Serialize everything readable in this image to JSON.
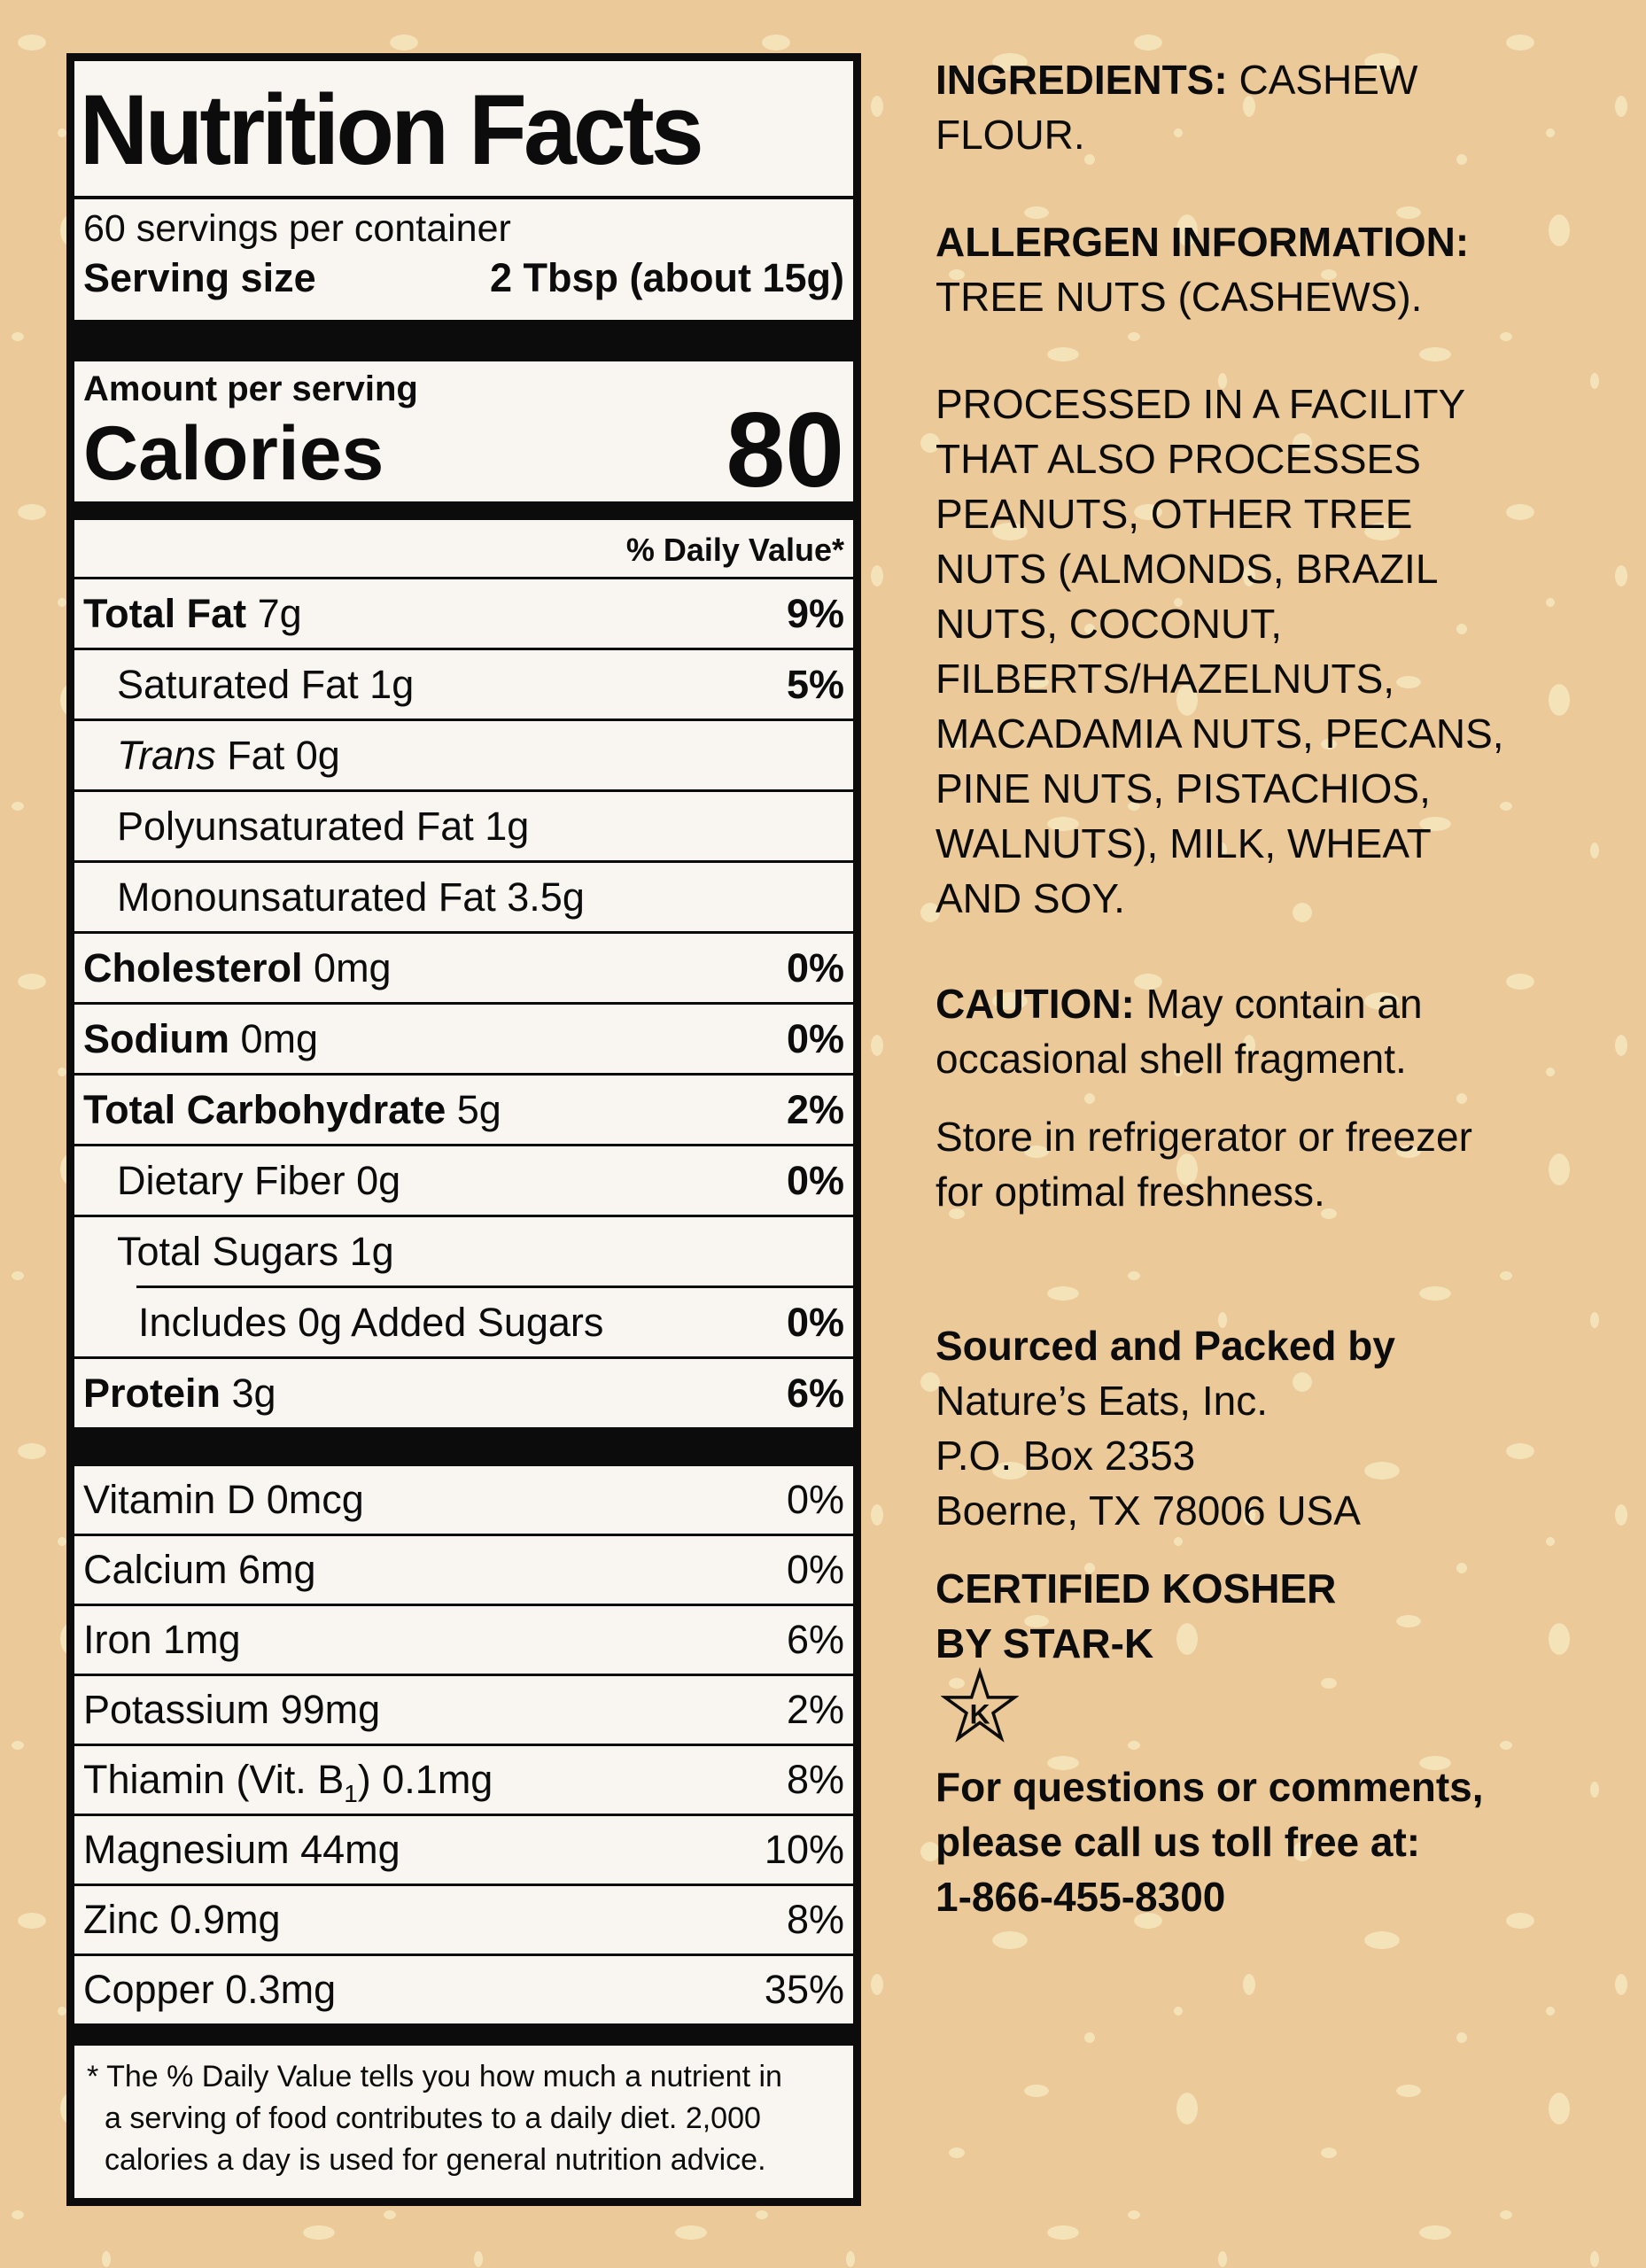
{
  "colors": {
    "background": "#ebc998",
    "panel": "#f9f5f1",
    "ink": "#0c0c0c",
    "speckle": "#f4e2b8"
  },
  "label": {
    "title": "Nutrition Facts",
    "servings": "60 servings per container",
    "serving_size_label": "Serving size",
    "serving_size_value": "2 Tbsp (about 15g)",
    "amount_per_serving": "Amount per serving",
    "calories_label": "Calories",
    "calories_value": "80",
    "dv_header": "% Daily Value*",
    "rows": [
      {
        "segs": [
          {
            "t": "Total Fat",
            "b": true
          },
          {
            "t": " 7g"
          }
        ],
        "dv": "9%",
        "dvb": true,
        "ind": 0
      },
      {
        "segs": [
          {
            "t": "Saturated Fat 1g"
          }
        ],
        "dv": "5%",
        "dvb": true,
        "ind": 1
      },
      {
        "segs": [
          {
            "t": "Trans",
            "i": true
          },
          {
            "t": " Fat 0g"
          }
        ],
        "dv": "",
        "ind": 1
      },
      {
        "segs": [
          {
            "t": "Polyunsaturated Fat 1g"
          }
        ],
        "dv": "",
        "ind": 1
      },
      {
        "segs": [
          {
            "t": "Monounsaturated Fat 3.5g"
          }
        ],
        "dv": "",
        "ind": 1
      },
      {
        "segs": [
          {
            "t": "Cholesterol",
            "b": true
          },
          {
            "t": " 0mg"
          }
        ],
        "dv": "0%",
        "dvb": true,
        "ind": 0
      },
      {
        "segs": [
          {
            "t": "Sodium",
            "b": true
          },
          {
            "t": " 0mg"
          }
        ],
        "dv": "0%",
        "dvb": true,
        "ind": 0
      },
      {
        "segs": [
          {
            "t": "Total Carbohydrate",
            "b": true
          },
          {
            "t": " 5g"
          }
        ],
        "dv": "2%",
        "dvb": true,
        "ind": 0
      },
      {
        "segs": [
          {
            "t": "Dietary Fiber 0g"
          }
        ],
        "dv": "0%",
        "dvb": true,
        "ind": 1
      },
      {
        "segs": [
          {
            "t": "Total Sugars 1g"
          }
        ],
        "dv": "",
        "ind": 1,
        "no_bb": true
      },
      {
        "segs": [
          {
            "t": "Includes 0g Added Sugars"
          }
        ],
        "dv": "0%",
        "dvb": true,
        "ind": 2,
        "rule_top": "indent"
      },
      {
        "segs": [
          {
            "t": "Protein",
            "b": true
          },
          {
            "t": " 3g"
          }
        ],
        "dv": "6%",
        "dvb": true,
        "ind": 0,
        "no_bb": true
      }
    ],
    "vitamins": [
      {
        "segs": [
          {
            "t": "Vitamin D 0mcg"
          }
        ],
        "dv": "0%"
      },
      {
        "segs": [
          {
            "t": "Calcium 6mg"
          }
        ],
        "dv": "0%"
      },
      {
        "segs": [
          {
            "t": "Iron 1mg"
          }
        ],
        "dv": "6%"
      },
      {
        "segs": [
          {
            "t": "Potassium 99mg"
          }
        ],
        "dv": "2%"
      },
      {
        "segs": [
          {
            "t": "Thiamin (Vit. B"
          },
          {
            "t": "1",
            "sub": true
          },
          {
            "t": ") 0.1mg"
          }
        ],
        "dv": "8%"
      },
      {
        "segs": [
          {
            "t": "Magnesium 44mg"
          }
        ],
        "dv": "10%"
      },
      {
        "segs": [
          {
            "t": "Zinc 0.9mg"
          }
        ],
        "dv": "8%"
      },
      {
        "segs": [
          {
            "t": "Copper 0.3mg"
          }
        ],
        "dv": "35%",
        "no_bb": true
      }
    ],
    "footnote_lines": [
      "* The % Daily Value tells you how much a nutrient in",
      "a serving of food contributes to a daily diet. 2,000",
      "calories a day is used for general nutrition advice."
    ]
  },
  "info": {
    "sections": [
      {
        "name": "ingredients",
        "lines": [
          [
            {
              "t": "INGREDIENTS:",
              "b": true
            },
            {
              "t": " CASHEW"
            }
          ],
          [
            {
              "t": "FLOUR."
            }
          ]
        ]
      },
      {
        "name": "allergen",
        "lines": [
          [
            {
              "t": "ALLERGEN INFORMATION:",
              "b": true
            }
          ],
          [
            {
              "t": "TREE NUTS (CASHEWS)."
            }
          ]
        ]
      },
      {
        "name": "facility",
        "lines": [
          [
            {
              "t": "PROCESSED IN A FACILITY"
            }
          ],
          [
            {
              "t": "THAT ALSO PROCESSES"
            }
          ],
          [
            {
              "t": "PEANUTS, OTHER TREE"
            }
          ],
          [
            {
              "t": "NUTS (ALMONDS, BRAZIL"
            }
          ],
          [
            {
              "t": "NUTS, COCONUT,"
            }
          ],
          [
            {
              "t": "FILBERTS/HAZELNUTS,"
            }
          ],
          [
            {
              "t": "MACADAMIA NUTS, PECANS,"
            }
          ],
          [
            {
              "t": "PINE NUTS, PISTACHIOS,"
            }
          ],
          [
            {
              "t": "WALNUTS), MILK, WHEAT"
            }
          ],
          [
            {
              "t": "AND SOY."
            }
          ]
        ]
      },
      {
        "name": "caution",
        "lines": [
          [
            {
              "t": "CAUTION:",
              "b": true
            },
            {
              "t": " May contain an"
            }
          ],
          [
            {
              "t": "occasional shell fragment."
            }
          ]
        ]
      },
      {
        "name": "storage",
        "lines": [
          [
            {
              "t": "Store in refrigerator or freezer"
            }
          ],
          [
            {
              "t": "for optimal freshness."
            }
          ]
        ]
      },
      {
        "name": "sourced",
        "lines": [
          [
            {
              "t": "Sourced and Packed by",
              "b": true
            }
          ],
          [
            {
              "t": "Nature’s Eats, Inc."
            }
          ],
          [
            {
              "t": "P.O. Box 2353"
            }
          ],
          [
            {
              "t": "Boerne, TX 78006 USA"
            }
          ]
        ]
      },
      {
        "name": "kosher",
        "lines": [
          [
            {
              "t": "CERTIFIED KOSHER",
              "b": true
            }
          ],
          [
            {
              "t": "BY STAR-K",
              "b": true
            }
          ]
        ]
      },
      {
        "name": "contact",
        "lines": [
          [
            {
              "t": "For questions or comments,",
              "b": true
            }
          ],
          [
            {
              "t": "please call us toll free at:",
              "b": true
            }
          ],
          [
            {
              "t": "1-866-455-8300",
              "b": true
            }
          ]
        ]
      }
    ],
    "star_k_letter": "K"
  }
}
